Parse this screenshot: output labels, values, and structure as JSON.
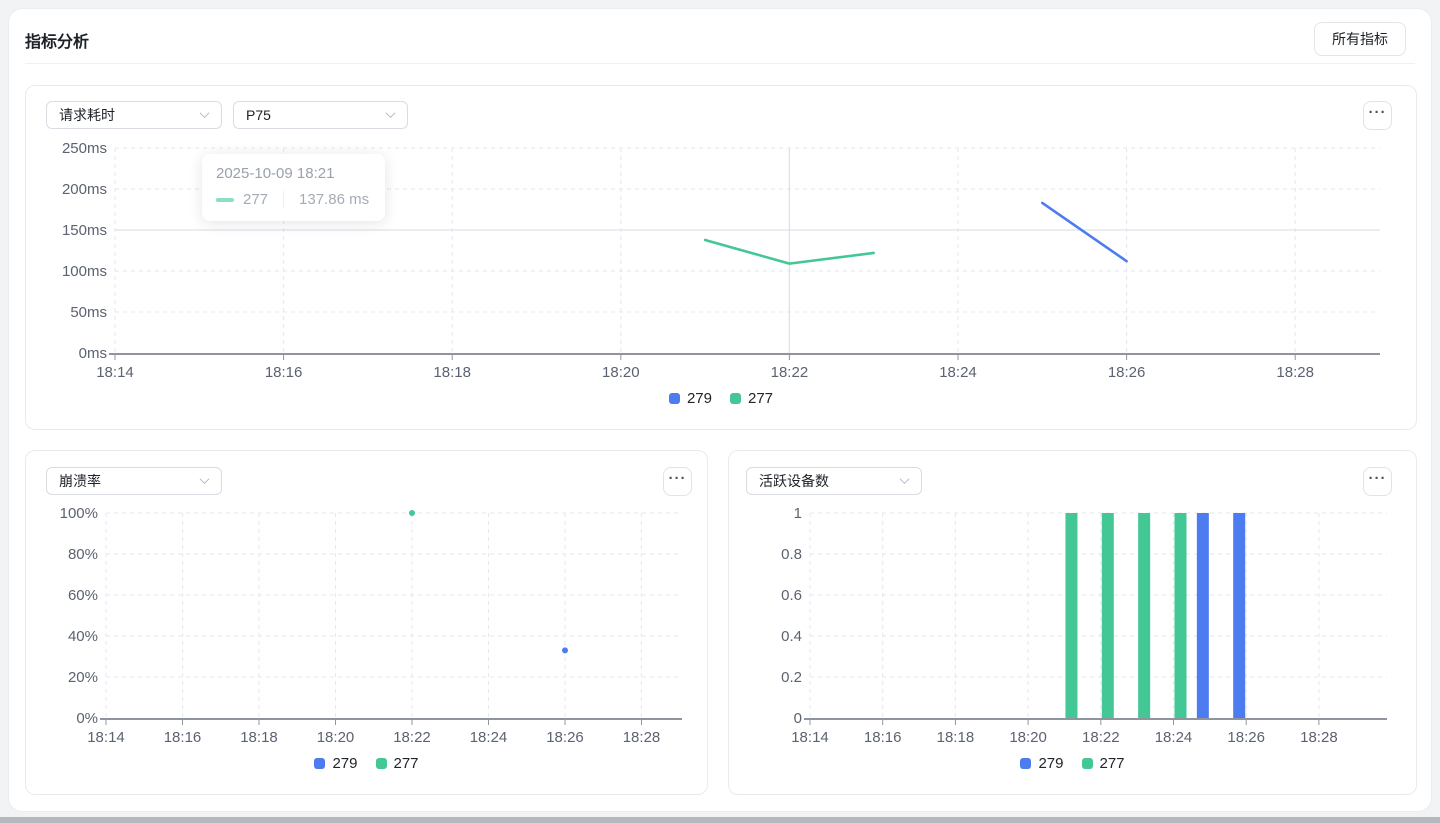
{
  "header": {
    "title": "指标分析",
    "all_metrics_button": "所有指标"
  },
  "icons": {
    "more_options": "···"
  },
  "x_axis_times": [
    "18:14",
    "18:16",
    "18:18",
    "18:20",
    "18:22",
    "18:24",
    "18:26",
    "18:28"
  ],
  "legend_series": [
    "279",
    "277"
  ],
  "colors": {
    "series_279": "#4d7cf0",
    "series_277": "#42c795",
    "tooltip_marker_green": "#8be0c1"
  },
  "chart_data": [
    {
      "id": "request-latency",
      "type": "line",
      "metric_select": "请求耗时",
      "aggregation_select": "P75",
      "ylim": [
        0,
        250
      ],
      "y_ticks": [
        0,
        50,
        100,
        150,
        200,
        250
      ],
      "y_tick_labels": [
        "0ms",
        "50ms",
        "100ms",
        "150ms",
        "200ms",
        "250ms"
      ],
      "x_tick_labels": [
        "18:14",
        "18:16",
        "18:18",
        "18:20",
        "18:22",
        "18:24",
        "18:26",
        "18:28"
      ],
      "grid": true,
      "legend_position": "bottom",
      "series": [
        {
          "name": "279",
          "color": "#4d7cf0",
          "points": [
            [
              "18:25",
              183
            ],
            [
              "18:26",
              112
            ]
          ]
        },
        {
          "name": "277",
          "color": "#42c795",
          "points": [
            [
              "18:21",
              137.86
            ],
            [
              "18:22",
              109
            ],
            [
              "18:23",
              122
            ]
          ]
        }
      ],
      "tooltip": {
        "title": "2025-10-09 18:21",
        "series": "277",
        "value": "137.86 ms"
      },
      "crosshair": {
        "x": "18:22",
        "y": 150
      }
    },
    {
      "id": "crash-rate",
      "type": "scatter",
      "metric_select": "崩溃率",
      "ylim": [
        0,
        100
      ],
      "y_ticks": [
        0,
        20,
        40,
        60,
        80,
        100
      ],
      "y_tick_labels": [
        "0%",
        "20%",
        "40%",
        "60%",
        "80%",
        "100%"
      ],
      "x_tick_labels": [
        "18:14",
        "18:16",
        "18:18",
        "18:20",
        "18:22",
        "18:24",
        "18:26",
        "18:28"
      ],
      "grid": true,
      "legend_position": "bottom",
      "series": [
        {
          "name": "279",
          "color": "#4d7cf0",
          "points": [
            [
              "18:26",
              33
            ]
          ]
        },
        {
          "name": "277",
          "color": "#42c795",
          "points": [
            [
              "18:22",
              100
            ]
          ]
        }
      ]
    },
    {
      "id": "active-devices",
      "type": "bar",
      "metric_select": "活跃设备数",
      "ylim": [
        0,
        1
      ],
      "y_ticks": [
        0,
        0.2,
        0.4,
        0.6,
        0.8,
        1
      ],
      "y_tick_labels": [
        "0",
        "0.2",
        "0.4",
        "0.6",
        "0.8",
        "1"
      ],
      "x_tick_labels": [
        "18:14",
        "18:16",
        "18:18",
        "18:20",
        "18:22",
        "18:24",
        "18:26",
        "18:28"
      ],
      "grid": true,
      "legend_position": "bottom",
      "series": [
        {
          "name": "279",
          "color": "#4d7cf0",
          "points": [
            [
              "18:25",
              1
            ],
            [
              "18:26",
              1
            ]
          ]
        },
        {
          "name": "277",
          "color": "#42c795",
          "points": [
            [
              "18:21",
              1
            ],
            [
              "18:22",
              1
            ],
            [
              "18:23",
              1
            ],
            [
              "18:24",
              1
            ]
          ]
        }
      ]
    }
  ]
}
